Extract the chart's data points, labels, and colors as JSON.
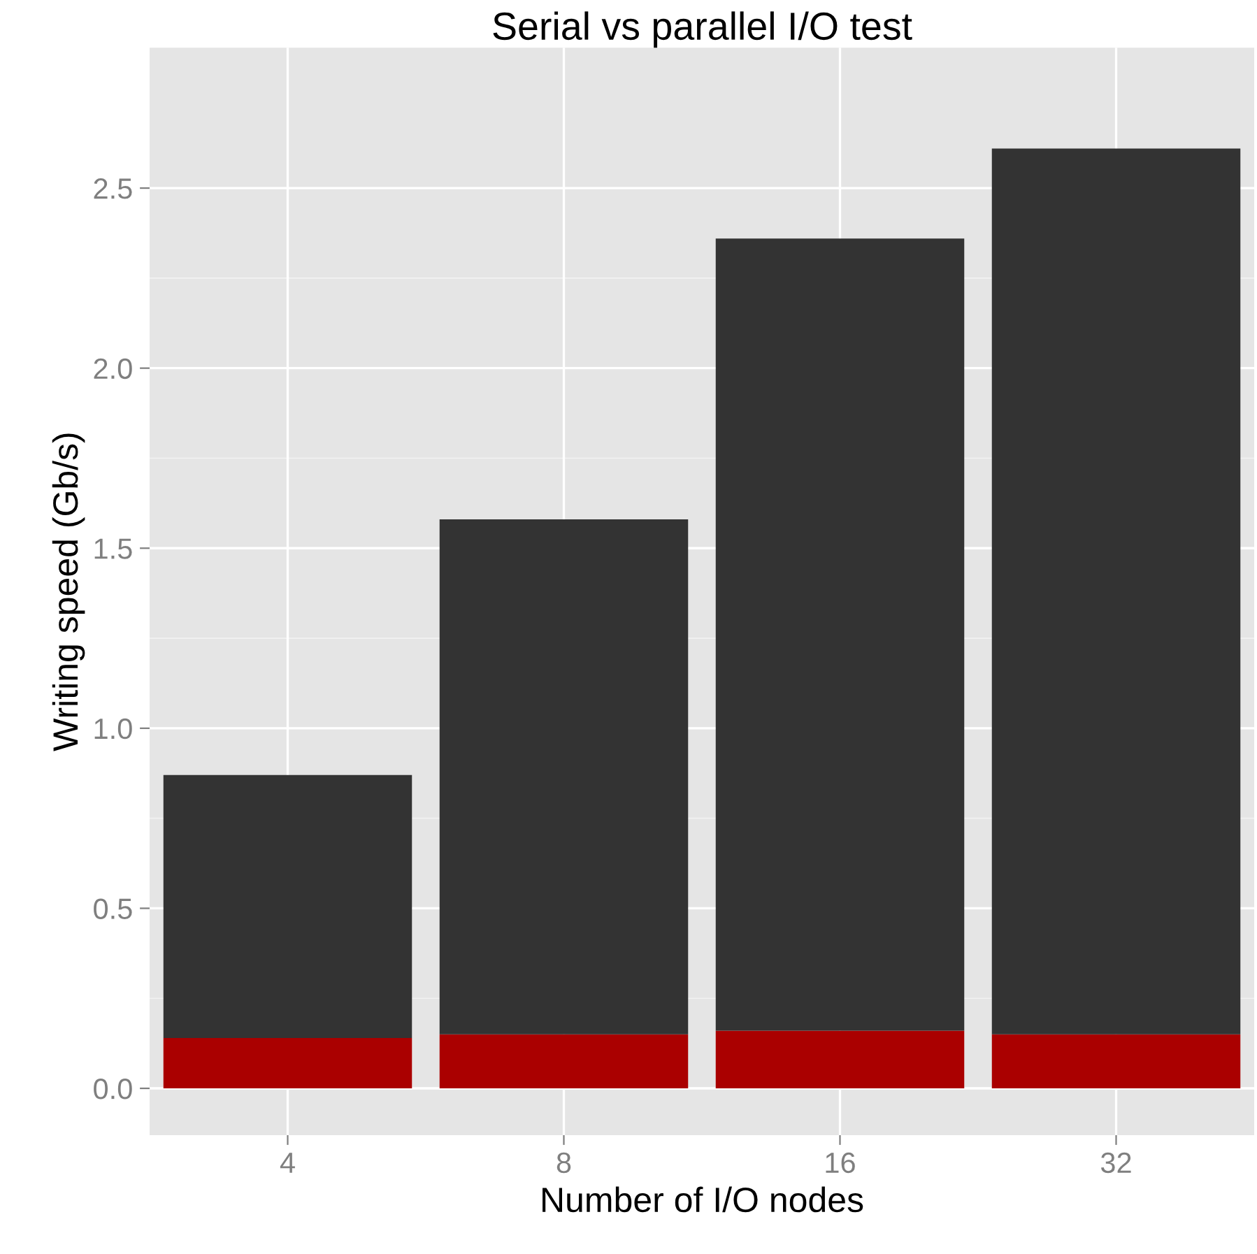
{
  "chart_data": {
    "type": "bar",
    "title": "Serial vs parallel I/O test",
    "xlabel": "Number of I/O nodes",
    "ylabel": "Writing speed (Gb/s)",
    "categories": [
      "4",
      "8",
      "16",
      "32"
    ],
    "stacked": true,
    "series": [
      {
        "color": "#aa0000",
        "values": [
          0.14,
          0.15,
          0.16,
          0.15
        ]
      },
      {
        "color": "#333333",
        "values": [
          0.73,
          1.43,
          2.2,
          2.46
        ]
      }
    ],
    "ylim": [
      -0.13,
      2.89
    ],
    "yticks": [
      {
        "value": 0,
        "label": "0.0"
      },
      0.5,
      {
        "value": 1,
        "label": "1.0"
      },
      1.5,
      {
        "value": 2,
        "label": "2.0"
      },
      2.5
    ],
    "grid": true
  }
}
